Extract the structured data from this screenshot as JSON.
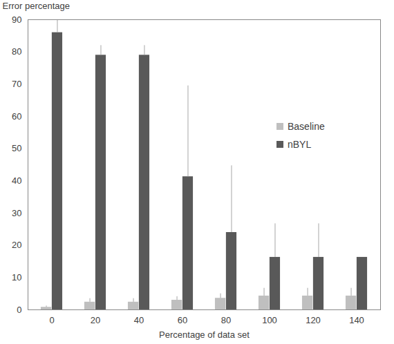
{
  "chart_data": {
    "type": "bar",
    "x_label": "Percentage of data set",
    "y_label": "Error percentage",
    "categories": [
      0,
      20,
      40,
      60,
      80,
      100,
      120,
      140
    ],
    "series": [
      {
        "name": "Baseline",
        "color": "#bfbfbf",
        "values": [
          0.8,
          2.4,
          2.4,
          3,
          3.6,
          4.3,
          4.3,
          4.3
        ],
        "errors": [
          0.4,
          1.1,
          1.1,
          1.1,
          1.4,
          2.4,
          2.4,
          2.4
        ]
      },
      {
        "name": "nBYL",
        "color": "#595959",
        "values": [
          86,
          79,
          79,
          41.3,
          24,
          16.3,
          16.3,
          16.3
        ],
        "errors": [
          5,
          3,
          3,
          28.2,
          20.7,
          10.4,
          10.4,
          0
        ]
      }
    ],
    "ylim": [
      0,
      90
    ],
    "yticks": [
      0,
      10,
      20,
      30,
      40,
      50,
      60,
      70,
      80,
      90
    ],
    "grid": false,
    "legend": "right"
  }
}
